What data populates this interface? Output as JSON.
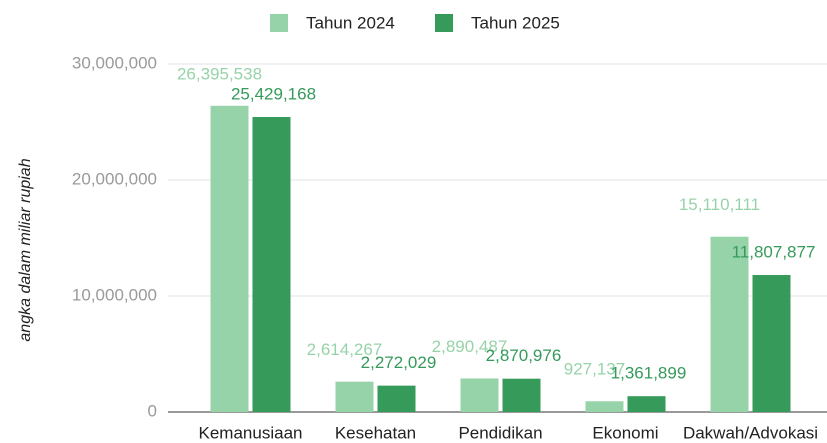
{
  "chart_data": {
    "type": "bar",
    "y_label": "angka dalam miliar rupiah",
    "categories": [
      "Kemanusiaan",
      "Kesehatan",
      "Pendidikan",
      "Ekonomi",
      "Dakwah/Advokasi"
    ],
    "series": [
      {
        "name": "Tahun 2024",
        "color": "#97d3a9",
        "values": [
          26395538,
          2614267,
          2890487,
          927137,
          15110111
        ],
        "value_labels": [
          "26,395,538",
          "2,614,267",
          "2,890,487",
          "927,137",
          "15,110,111"
        ]
      },
      {
        "name": "Tahun 2025",
        "color": "#359a5a",
        "values": [
          25429168,
          2272029,
          2870976,
          1361899,
          11807877
        ],
        "value_labels": [
          "25,429,168",
          "2,272,029",
          "2,870,976",
          "1,361,899",
          "11,807,877"
        ]
      }
    ],
    "ylim": [
      0,
      30000000
    ],
    "yticks": [
      {
        "value": 0,
        "label": "0"
      },
      {
        "value": 10000000,
        "label": "10,000,000"
      },
      {
        "value": 20000000,
        "label": "20,000,000"
      },
      {
        "value": 30000000,
        "label": "30,000,000"
      }
    ],
    "grid": true,
    "legend": "top"
  }
}
